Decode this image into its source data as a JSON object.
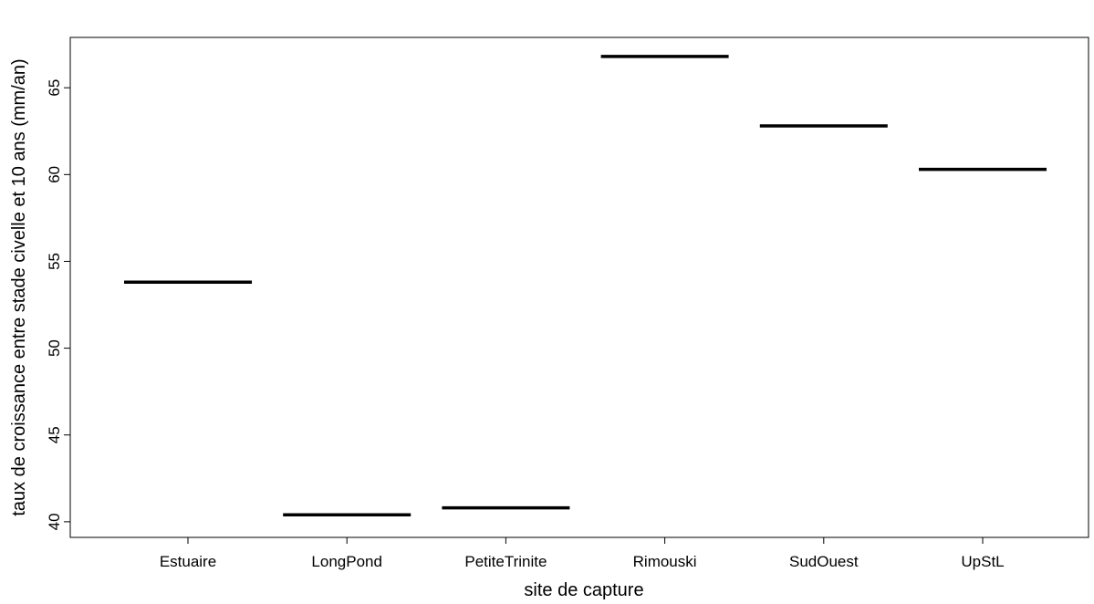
{
  "chart_data": {
    "type": "line",
    "xlabel": "site de capture",
    "ylabel": "taux de croissance entre stade civelle et 10 ans (mm/an)",
    "categories": [
      "Estuaire",
      "LongPond",
      "PetiteTrinite",
      "Rimouski",
      "SudOuest",
      "UpStL"
    ],
    "values": [
      53.8,
      40.4,
      40.8,
      66.8,
      62.8,
      60.3
    ],
    "ylim": [
      39.1,
      67.9
    ],
    "yticks": [
      40,
      45,
      50,
      55,
      60,
      65
    ],
    "grid": false,
    "legend": "none",
    "line_color": "#000000"
  }
}
